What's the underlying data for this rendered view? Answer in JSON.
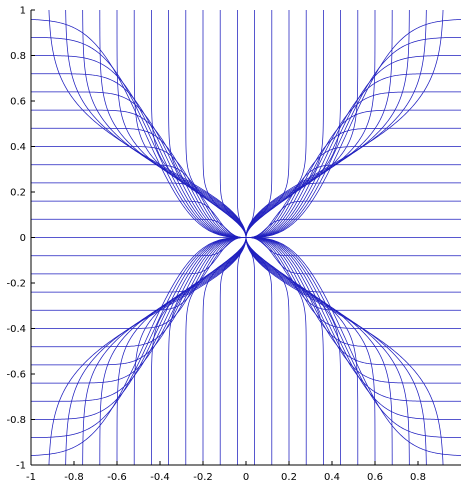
{
  "chart_data": {
    "type": "line",
    "title": "",
    "xlabel": "",
    "ylabel": "",
    "xlim": [
      -1,
      1
    ],
    "ylim": [
      -1,
      1
    ],
    "grid": false,
    "legend": "none",
    "line_color": "#1f1fbf",
    "axis_color": "#000000",
    "x_ticks": [
      -1,
      -0.8,
      -0.6,
      -0.4,
      -0.2,
      0,
      0.2,
      0.4,
      0.6,
      0.8
    ],
    "x_tick_labels": [
      "-1",
      "-0.8",
      "-0.6",
      "-0.4",
      "-0.2",
      "0",
      "0.2",
      "0.4",
      "0.6",
      "0.8"
    ],
    "y_ticks": [
      -1,
      -0.8,
      -0.6,
      -0.4,
      -0.2,
      0,
      0.2,
      0.4,
      0.6,
      0.8,
      1
    ],
    "y_tick_labels": [
      "-1",
      "-0.8",
      "-0.6",
      "-0.4",
      "-0.2",
      "0",
      "0.2",
      "0.4",
      "0.6",
      "0.8",
      "1"
    ],
    "streamlines": {
      "description_family": "trajectories x = a·e^t, y = b·e^(2t) converging to origin",
      "horizontal_starts_y": [
        -0.96,
        -0.88,
        -0.8,
        -0.72,
        -0.64,
        -0.56,
        -0.48,
        -0.4,
        -0.32,
        -0.24,
        -0.16,
        -0.08,
        0.0,
        0.08,
        0.16,
        0.24,
        0.32,
        0.4,
        0.48,
        0.56,
        0.64,
        0.72,
        0.8,
        0.88,
        0.96
      ],
      "vertical_starts_x": [
        -0.92,
        -0.84,
        -0.76,
        -0.68,
        -0.6,
        -0.52,
        -0.44,
        -0.36,
        -0.28,
        -0.2,
        -0.12,
        -0.04,
        0.04,
        0.12,
        0.2,
        0.28,
        0.36,
        0.44,
        0.52,
        0.6,
        0.68,
        0.76,
        0.84,
        0.92
      ]
    }
  }
}
